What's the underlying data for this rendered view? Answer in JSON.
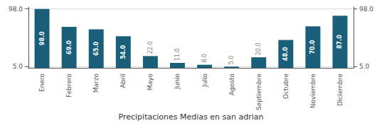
{
  "chart_data": {
    "type": "bar",
    "xlabel": "Precipitaciones Medias en san adrian",
    "categories": [
      "Enero",
      "Febrero",
      "Marzo",
      "Abril",
      "Mayo",
      "Junio",
      "Julio",
      "Agosto",
      "Septiembre",
      "Octubre",
      "Noviembre",
      "Diciembre"
    ],
    "values": [
      98.0,
      69.0,
      65.0,
      54.0,
      22.0,
      11.0,
      8.0,
      5.0,
      20.0,
      48.0,
      70.0,
      87.0
    ],
    "value_labels": [
      "98.0",
      "69.0",
      "65.0",
      "54.0",
      "22.0",
      "11.0",
      "8.0",
      "5.0",
      "20.0",
      "48.0",
      "70.0",
      "87.0"
    ],
    "data_labels": true,
    "color": "#1a5f7a",
    "ylim": [
      3.0,
      101.0
    ],
    "yticks": [
      {
        "value": 5.0,
        "label": "5.0"
      },
      {
        "value": 98.0,
        "label": "98.0"
      }
    ],
    "y2lim": [
      3.0,
      101.0
    ],
    "y2ticks": [
      {
        "value": 5.0,
        "label": "5.0"
      },
      {
        "value": 98.0,
        "label": "98.0"
      }
    ],
    "grid": true
  }
}
